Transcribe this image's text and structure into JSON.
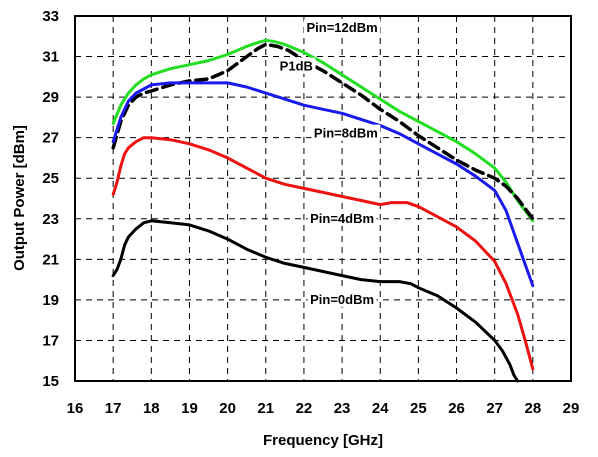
{
  "chart_data": {
    "type": "line",
    "title": "",
    "xlabel": "Frequency [GHz]",
    "ylabel": "Output Power [dBm]",
    "xlim": [
      16,
      29
    ],
    "ylim": [
      15,
      33
    ],
    "xticks": [
      "16",
      "17",
      "18",
      "19",
      "20",
      "21",
      "22",
      "23",
      "24",
      "25",
      "26",
      "27",
      "28",
      "29"
    ],
    "yticks": [
      "15",
      "17",
      "19",
      "21",
      "23",
      "25",
      "27",
      "29",
      "31",
      "33"
    ],
    "grid": true,
    "legend": "none",
    "series": [
      {
        "name": "Pin=12dBm",
        "color": "#22dd22",
        "dashed": false,
        "x": [
          17,
          17.2,
          17.4,
          17.6,
          17.8,
          18,
          18.5,
          19,
          19.5,
          20,
          20.5,
          20.8,
          21,
          21.2,
          21.5,
          22,
          22.5,
          23,
          23.5,
          24,
          24.5,
          25,
          25.5,
          26,
          26.5,
          27,
          27.3,
          27.6,
          28
        ],
        "y": [
          27.7,
          28.6,
          29.2,
          29.6,
          29.9,
          30.1,
          30.4,
          30.6,
          30.8,
          31.1,
          31.5,
          31.7,
          31.8,
          31.75,
          31.6,
          31.2,
          30.7,
          30.1,
          29.5,
          28.9,
          28.3,
          27.8,
          27.3,
          26.8,
          26.2,
          25.5,
          24.8,
          23.9,
          22.9
        ]
      },
      {
        "name": "P1dB",
        "color": "#000000",
        "dashed": true,
        "x": [
          17,
          17.2,
          17.4,
          17.6,
          17.8,
          18,
          18.5,
          19,
          19.5,
          20,
          20.5,
          20.8,
          21,
          21.3,
          21.6,
          22,
          22.5,
          23,
          23.5,
          24,
          24.5,
          25,
          25.5,
          26,
          26.5,
          27,
          27.3,
          27.6,
          28
        ],
        "y": [
          26.5,
          27.8,
          28.6,
          29.0,
          29.2,
          29.3,
          29.6,
          29.8,
          29.9,
          30.3,
          31.0,
          31.4,
          31.6,
          31.5,
          31.3,
          30.8,
          30.3,
          29.7,
          29.1,
          28.4,
          27.8,
          27.1,
          26.5,
          25.9,
          25.4,
          25.0,
          24.6,
          24.0,
          23.0
        ]
      },
      {
        "name": "Pin=8dBm",
        "color": "#1a1aee",
        "dashed": false,
        "x": [
          17,
          17.2,
          17.4,
          17.6,
          17.8,
          18,
          18.5,
          19,
          19.5,
          20,
          20.5,
          21,
          21.5,
          22,
          22.5,
          23,
          23.5,
          24,
          24.5,
          25,
          25.5,
          26,
          26.5,
          27,
          27.3,
          27.6,
          28
        ],
        "y": [
          26.8,
          28.0,
          28.8,
          29.2,
          29.4,
          29.6,
          29.7,
          29.7,
          29.7,
          29.7,
          29.5,
          29.2,
          28.9,
          28.6,
          28.4,
          28.2,
          27.9,
          27.6,
          27.2,
          26.7,
          26.2,
          25.7,
          25.1,
          24.4,
          23.4,
          21.8,
          19.7
        ]
      },
      {
        "name": "Pin=4dBm",
        "color": "#ee1111",
        "dashed": false,
        "x": [
          17,
          17.1,
          17.2,
          17.3,
          17.4,
          17.6,
          17.8,
          18,
          18.5,
          19,
          19.5,
          20,
          20.5,
          21,
          21.5,
          22,
          22.5,
          23,
          23.5,
          24,
          24.3,
          24.7,
          25,
          25.5,
          26,
          26.5,
          27,
          27.3,
          27.6,
          27.8,
          28
        ],
        "y": [
          24.2,
          24.8,
          25.6,
          26.2,
          26.5,
          26.8,
          27.0,
          27.0,
          26.9,
          26.7,
          26.4,
          26.0,
          25.5,
          25.0,
          24.7,
          24.5,
          24.3,
          24.1,
          23.9,
          23.7,
          23.8,
          23.8,
          23.6,
          23.1,
          22.6,
          21.9,
          20.9,
          19.8,
          18.3,
          17.0,
          15.6
        ]
      },
      {
        "name": "Pin=0dBm",
        "color": "#000000",
        "dashed": false,
        "x": [
          17,
          17.1,
          17.2,
          17.3,
          17.4,
          17.6,
          17.8,
          18,
          18.5,
          19,
          19.5,
          20,
          20.5,
          21,
          21.5,
          22,
          22.5,
          23,
          23.5,
          24,
          24.5,
          24.8,
          25,
          25.5,
          26,
          26.5,
          27,
          27.2,
          27.4,
          27.5,
          27.6
        ],
        "y": [
          20.2,
          20.5,
          21.0,
          21.7,
          22.1,
          22.5,
          22.8,
          22.9,
          22.8,
          22.7,
          22.4,
          22.0,
          21.5,
          21.1,
          20.8,
          20.6,
          20.4,
          20.2,
          20.0,
          19.9,
          19.9,
          19.8,
          19.6,
          19.2,
          18.6,
          17.9,
          17.0,
          16.5,
          15.8,
          15.3,
          15.0
        ]
      }
    ],
    "annotations": [
      {
        "text": "Pin=12dBm",
        "x": 23.0,
        "y": 32.3
      },
      {
        "text": "P1dB",
        "x": 21.8,
        "y": 30.4
      },
      {
        "text": "Pin=8dBm",
        "x": 23.1,
        "y": 27.1
      },
      {
        "text": "Pin=4dBm",
        "x": 23.0,
        "y": 22.9
      },
      {
        "text": "Pin=0dBm",
        "x": 23.0,
        "y": 18.9
      }
    ]
  }
}
